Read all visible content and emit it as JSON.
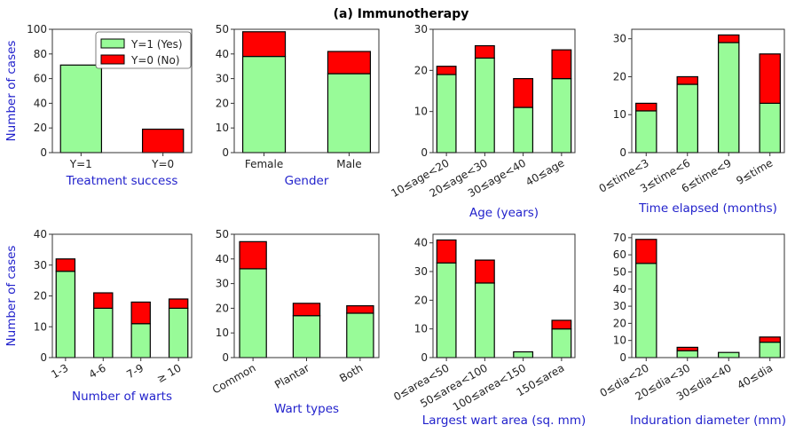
{
  "suptitle": "(a) Immunotherapy",
  "colors": {
    "yes": "#98fb98",
    "no": "#ff0000",
    "axis_label": "#2222cc",
    "edge": "#000000"
  },
  "legend": {
    "placement": "upper-right of first panel",
    "entries": [
      "Y=1 (Yes)",
      "Y=0 (No)"
    ]
  },
  "chart_data": [
    {
      "type": "bar",
      "stacked": true,
      "title": "",
      "xlabel": "Treatment success",
      "ylabel": "Number of cases",
      "categories": [
        "Y=1",
        "Y=0"
      ],
      "series": [
        {
          "name": "Y=1 (Yes)",
          "values": [
            71,
            0
          ]
        },
        {
          "name": "Y=0 (No)",
          "values": [
            0,
            19
          ]
        }
      ],
      "ylim": [
        0,
        100
      ],
      "yticks": [
        0,
        20,
        40,
        60,
        80,
        100
      ],
      "xtick_rotation": 0,
      "legend": true
    },
    {
      "type": "bar",
      "stacked": true,
      "title": "",
      "xlabel": "Gender",
      "ylabel": "",
      "categories": [
        "Female",
        "Male"
      ],
      "series": [
        {
          "name": "Y=1 (Yes)",
          "values": [
            39,
            32
          ]
        },
        {
          "name": "Y=0 (No)",
          "values": [
            10,
            9
          ]
        }
      ],
      "ylim": [
        0,
        50
      ],
      "yticks": [
        0,
        10,
        20,
        30,
        40,
        50
      ],
      "xtick_rotation": 0
    },
    {
      "type": "bar",
      "stacked": true,
      "title": "",
      "xlabel": "Age (years)",
      "ylabel": "",
      "categories": [
        "10≤age<20",
        "20≤age<30",
        "30≤age<40",
        "40≤age"
      ],
      "series": [
        {
          "name": "Y=1 (Yes)",
          "values": [
            19,
            23,
            11,
            18
          ]
        },
        {
          "name": "Y=0 (No)",
          "values": [
            2,
            3,
            7,
            7
          ]
        }
      ],
      "ylim": [
        0,
        30
      ],
      "yticks": [
        0,
        10,
        20,
        30
      ],
      "xtick_rotation": 30
    },
    {
      "type": "bar",
      "stacked": true,
      "title": "",
      "xlabel": "Time elapsed (months)",
      "ylabel": "",
      "categories": [
        "0≤time<3",
        "3≤time<6",
        "6≤time<9",
        "9≤time"
      ],
      "series": [
        {
          "name": "Y=1 (Yes)",
          "values": [
            11,
            18,
            29,
            13
          ]
        },
        {
          "name": "Y=0 (No)",
          "values": [
            2,
            2,
            2,
            13
          ]
        }
      ],
      "ylim": [
        0,
        32.5
      ],
      "yticks": [
        0,
        10,
        20,
        30
      ],
      "xtick_rotation": 30
    },
    {
      "type": "bar",
      "stacked": true,
      "title": "",
      "xlabel": "Number of warts",
      "ylabel": "Number of cases",
      "categories": [
        "1-3",
        "4-6",
        "7-9",
        "≥ 10"
      ],
      "series": [
        {
          "name": "Y=1 (Yes)",
          "values": [
            28,
            16,
            11,
            16
          ]
        },
        {
          "name": "Y=0 (No)",
          "values": [
            4,
            5,
            7,
            3
          ]
        }
      ],
      "ylim": [
        0,
        40
      ],
      "yticks": [
        0,
        10,
        20,
        30,
        40
      ],
      "xtick_rotation": 30
    },
    {
      "type": "bar",
      "stacked": true,
      "title": "",
      "xlabel": "Wart types",
      "ylabel": "",
      "categories": [
        "Common",
        "Plantar",
        "Both"
      ],
      "series": [
        {
          "name": "Y=1 (Yes)",
          "values": [
            36,
            17,
            18
          ]
        },
        {
          "name": "Y=0 (No)",
          "values": [
            11,
            5,
            3
          ]
        }
      ],
      "ylim": [
        0,
        50
      ],
      "yticks": [
        0,
        10,
        20,
        30,
        40,
        50
      ],
      "xtick_rotation": 30
    },
    {
      "type": "bar",
      "stacked": true,
      "title": "",
      "xlabel": "Largest wart area (sq. mm)",
      "ylabel": "",
      "categories": [
        "0≤area<50",
        "50≤area<100",
        "100≤area<150",
        "150≤area"
      ],
      "series": [
        {
          "name": "Y=1 (Yes)",
          "values": [
            33,
            26,
            2,
            10
          ]
        },
        {
          "name": "Y=0 (No)",
          "values": [
            8,
            8,
            0,
            3
          ]
        }
      ],
      "ylim": [
        0,
        43
      ],
      "yticks": [
        0,
        10,
        20,
        30,
        40
      ],
      "xtick_rotation": 30
    },
    {
      "type": "bar",
      "stacked": true,
      "title": "",
      "xlabel": "Induration diameter (mm)",
      "ylabel": "",
      "categories": [
        "0≤dia<20",
        "20≤dia<30",
        "30≤dia<40",
        "40≤dia"
      ],
      "series": [
        {
          "name": "Y=1 (Yes)",
          "values": [
            55,
            4,
            3,
            9
          ]
        },
        {
          "name": "Y=0 (No)",
          "values": [
            14,
            2,
            0,
            3
          ]
        }
      ],
      "ylim": [
        0,
        72
      ],
      "yticks": [
        0,
        10,
        20,
        30,
        40,
        50,
        60,
        70
      ],
      "xtick_rotation": 30
    }
  ]
}
